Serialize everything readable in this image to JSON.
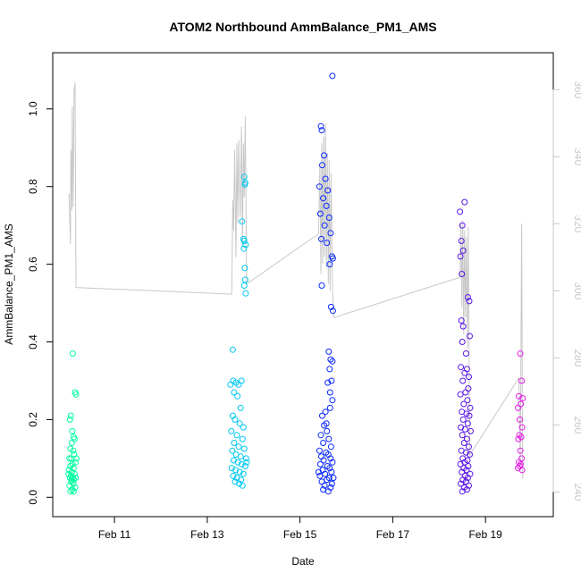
{
  "chart_data": {
    "type": "scatter",
    "title": "ATOM2 Northbound AmmBalance_PM1_AMS",
    "xlabel": "Date",
    "ylabel": "AmmBalance_PM1_AMS",
    "x_tick_labels": [
      "Feb 11",
      "Feb 13",
      "Feb 15",
      "Feb 17",
      "Feb 19"
    ],
    "x_ticks_day": [
      11,
      13,
      15,
      17,
      19
    ],
    "xlim_day": [
      9.9,
      20.25
    ],
    "ylim": [
      -0.02,
      1.11
    ],
    "y_ticks": [
      "0.0",
      "0.2",
      "0.4",
      "0.6",
      "0.8",
      "1.0"
    ],
    "y2_ticks": [
      "240",
      "260",
      "280",
      "300",
      "320",
      "340",
      "360"
    ],
    "y2lim": [
      236.1,
      367.0
    ],
    "grid": false,
    "colors": {
      "line": "#c8c8c8",
      "axis": "#000000",
      "y2axis": "#c8c8c8",
      "frame": "#000000"
    },
    "point_colors_by_time": [
      "#00ffa0",
      "#00c8f0",
      "#0a28ff",
      "#5a14e6",
      "#e61ee6"
    ],
    "series": [
      {
        "color_group": 0,
        "points": [
          [
            10.1,
            0.37
          ],
          [
            10.15,
            0.27
          ],
          [
            10.17,
            0.265
          ],
          [
            10.04,
            0.2
          ],
          [
            10.06,
            0.21
          ],
          [
            10.09,
            0.17
          ],
          [
            10.12,
            0.155
          ],
          [
            10.14,
            0.15
          ],
          [
            10.08,
            0.14
          ],
          [
            10.05,
            0.125
          ],
          [
            10.11,
            0.12
          ],
          [
            10.13,
            0.11
          ],
          [
            10.03,
            0.1
          ],
          [
            10.07,
            0.1
          ],
          [
            10.16,
            0.09
          ],
          [
            10.09,
            0.085
          ],
          [
            10.05,
            0.08
          ],
          [
            10.12,
            0.075
          ],
          [
            10.02,
            0.07
          ],
          [
            10.08,
            0.065
          ],
          [
            10.14,
            0.06
          ],
          [
            10.06,
            0.055
          ],
          [
            10.1,
            0.05
          ],
          [
            10.04,
            0.05
          ],
          [
            10.13,
            0.045
          ],
          [
            10.07,
            0.04
          ],
          [
            10.11,
            0.035
          ],
          [
            10.03,
            0.03
          ],
          [
            10.15,
            0.025
          ],
          [
            10.09,
            0.02
          ],
          [
            10.05,
            0.015
          ],
          [
            10.12,
            0.015
          ],
          [
            10.18,
            0.1
          ],
          [
            10.01,
            0.06
          ],
          [
            10.16,
            0.05
          ],
          [
            10.08,
            0.045
          ]
        ]
      },
      {
        "color_group": 1,
        "points": [
          [
            13.55,
            0.38
          ],
          [
            13.8,
            0.825
          ],
          [
            13.82,
            0.81
          ],
          [
            13.81,
            0.805
          ],
          [
            13.75,
            0.71
          ],
          [
            13.78,
            0.665
          ],
          [
            13.8,
            0.66
          ],
          [
            13.83,
            0.65
          ],
          [
            13.79,
            0.64
          ],
          [
            13.81,
            0.59
          ],
          [
            13.82,
            0.56
          ],
          [
            13.8,
            0.545
          ],
          [
            13.83,
            0.525
          ],
          [
            13.5,
            0.29
          ],
          [
            13.56,
            0.3
          ],
          [
            13.62,
            0.295
          ],
          [
            13.68,
            0.29
          ],
          [
            13.74,
            0.3
          ],
          [
            13.58,
            0.27
          ],
          [
            13.65,
            0.26
          ],
          [
            13.72,
            0.23
          ],
          [
            13.55,
            0.21
          ],
          [
            13.6,
            0.2
          ],
          [
            13.7,
            0.19
          ],
          [
            13.78,
            0.18
          ],
          [
            13.52,
            0.17
          ],
          [
            13.64,
            0.16
          ],
          [
            13.76,
            0.15
          ],
          [
            13.58,
            0.14
          ],
          [
            13.68,
            0.13
          ],
          [
            13.8,
            0.125
          ],
          [
            13.54,
            0.12
          ],
          [
            13.62,
            0.11
          ],
          [
            13.72,
            0.105
          ],
          [
            13.84,
            0.1
          ],
          [
            13.57,
            0.095
          ],
          [
            13.66,
            0.09
          ],
          [
            13.74,
            0.085
          ],
          [
            13.82,
            0.08
          ],
          [
            13.53,
            0.075
          ],
          [
            13.61,
            0.07
          ],
          [
            13.7,
            0.065
          ],
          [
            13.78,
            0.06
          ],
          [
            13.56,
            0.055
          ],
          [
            13.64,
            0.05
          ],
          [
            13.73,
            0.045
          ],
          [
            13.6,
            0.04
          ],
          [
            13.69,
            0.035
          ],
          [
            13.76,
            0.03
          ],
          [
            13.85,
            0.09
          ]
        ]
      },
      {
        "color_group": 2,
        "points": [
          [
            15.7,
            1.085
          ],
          [
            15.45,
            0.955
          ],
          [
            15.47,
            0.945
          ],
          [
            15.52,
            0.88
          ],
          [
            15.48,
            0.855
          ],
          [
            15.55,
            0.82
          ],
          [
            15.42,
            0.8
          ],
          [
            15.6,
            0.79
          ],
          [
            15.5,
            0.77
          ],
          [
            15.57,
            0.75
          ],
          [
            15.44,
            0.73
          ],
          [
            15.63,
            0.72
          ],
          [
            15.53,
            0.7
          ],
          [
            15.66,
            0.68
          ],
          [
            15.46,
            0.665
          ],
          [
            15.58,
            0.655
          ],
          [
            15.69,
            0.62
          ],
          [
            15.71,
            0.615
          ],
          [
            15.64,
            0.6
          ],
          [
            15.47,
            0.545
          ],
          [
            15.67,
            0.49
          ],
          [
            15.71,
            0.48
          ],
          [
            15.62,
            0.375
          ],
          [
            15.66,
            0.355
          ],
          [
            15.7,
            0.35
          ],
          [
            15.64,
            0.33
          ],
          [
            15.68,
            0.3
          ],
          [
            15.6,
            0.295
          ],
          [
            15.65,
            0.27
          ],
          [
            15.7,
            0.25
          ],
          [
            15.55,
            0.22
          ],
          [
            15.48,
            0.21
          ],
          [
            15.52,
            0.185
          ],
          [
            15.58,
            0.17
          ],
          [
            15.45,
            0.16
          ],
          [
            15.62,
            0.15
          ],
          [
            15.5,
            0.14
          ],
          [
            15.67,
            0.13
          ],
          [
            15.42,
            0.12
          ],
          [
            15.56,
            0.115
          ],
          [
            15.61,
            0.11
          ],
          [
            15.46,
            0.105
          ],
          [
            15.66,
            0.1
          ],
          [
            15.51,
            0.095
          ],
          [
            15.7,
            0.09
          ],
          [
            15.44,
            0.085
          ],
          [
            15.59,
            0.08
          ],
          [
            15.64,
            0.075
          ],
          [
            15.49,
            0.07
          ],
          [
            15.68,
            0.065
          ],
          [
            15.54,
            0.06
          ],
          [
            15.43,
            0.055
          ],
          [
            15.63,
            0.05
          ],
          [
            15.58,
            0.045
          ],
          [
            15.47,
            0.04
          ],
          [
            15.69,
            0.035
          ],
          [
            15.53,
            0.03
          ],
          [
            15.66,
            0.025
          ],
          [
            15.5,
            0.02
          ],
          [
            15.61,
            0.015
          ],
          [
            15.72,
            0.05
          ],
          [
            15.4,
            0.065
          ],
          [
            15.57,
            0.19
          ],
          [
            15.65,
            0.23
          ]
        ]
      },
      {
        "color_group": 3,
        "points": [
          [
            18.55,
            0.76
          ],
          [
            18.45,
            0.735
          ],
          [
            18.5,
            0.7
          ],
          [
            18.48,
            0.66
          ],
          [
            18.52,
            0.635
          ],
          [
            18.46,
            0.62
          ],
          [
            18.49,
            0.575
          ],
          [
            18.62,
            0.515
          ],
          [
            18.65,
            0.505
          ],
          [
            18.48,
            0.455
          ],
          [
            18.52,
            0.44
          ],
          [
            18.66,
            0.415
          ],
          [
            18.5,
            0.4
          ],
          [
            18.58,
            0.37
          ],
          [
            18.47,
            0.335
          ],
          [
            18.6,
            0.33
          ],
          [
            18.55,
            0.32
          ],
          [
            18.64,
            0.31
          ],
          [
            18.51,
            0.3
          ],
          [
            18.63,
            0.28
          ],
          [
            18.57,
            0.27
          ],
          [
            18.46,
            0.265
          ],
          [
            18.61,
            0.25
          ],
          [
            18.53,
            0.24
          ],
          [
            18.67,
            0.23
          ],
          [
            18.49,
            0.22
          ],
          [
            18.59,
            0.215
          ],
          [
            18.65,
            0.21
          ],
          [
            18.52,
            0.2
          ],
          [
            18.62,
            0.19
          ],
          [
            18.47,
            0.18
          ],
          [
            18.56,
            0.175
          ],
          [
            18.68,
            0.17
          ],
          [
            18.5,
            0.16
          ],
          [
            18.6,
            0.15
          ],
          [
            18.54,
            0.14
          ],
          [
            18.64,
            0.13
          ],
          [
            18.48,
            0.12
          ],
          [
            18.58,
            0.115
          ],
          [
            18.66,
            0.11
          ],
          [
            18.51,
            0.1
          ],
          [
            18.61,
            0.095
          ],
          [
            18.55,
            0.09
          ],
          [
            18.46,
            0.085
          ],
          [
            18.63,
            0.08
          ],
          [
            18.53,
            0.075
          ],
          [
            18.59,
            0.07
          ],
          [
            18.49,
            0.065
          ],
          [
            18.67,
            0.06
          ],
          [
            18.56,
            0.055
          ],
          [
            18.62,
            0.05
          ],
          [
            18.51,
            0.045
          ],
          [
            18.58,
            0.04
          ],
          [
            18.47,
            0.035
          ],
          [
            18.64,
            0.03
          ],
          [
            18.54,
            0.025
          ],
          [
            18.6,
            0.02
          ],
          [
            18.5,
            0.015
          ]
        ]
      },
      {
        "color_group": 4,
        "points": [
          [
            19.75,
            0.37
          ],
          [
            19.78,
            0.3
          ],
          [
            19.72,
            0.26
          ],
          [
            19.8,
            0.255
          ],
          [
            19.76,
            0.24
          ],
          [
            19.7,
            0.23
          ],
          [
            19.74,
            0.2
          ],
          [
            19.79,
            0.18
          ],
          [
            19.73,
            0.16
          ],
          [
            19.77,
            0.155
          ],
          [
            19.71,
            0.15
          ],
          [
            19.75,
            0.12
          ],
          [
            19.78,
            0.1
          ],
          [
            19.72,
            0.09
          ],
          [
            19.76,
            0.085
          ],
          [
            19.74,
            0.08
          ],
          [
            19.7,
            0.075
          ],
          [
            19.79,
            0.07
          ]
        ]
      }
    ],
    "line_y2": [
      [
        10.02,
        329
      ],
      [
        10.05,
        314
      ],
      [
        10.06,
        342
      ],
      [
        10.08,
        324
      ],
      [
        10.09,
        355
      ],
      [
        10.11,
        325
      ],
      [
        10.13,
        360
      ],
      [
        10.15,
        362
      ],
      [
        10.17,
        301
      ],
      [
        13.53,
        299
      ],
      [
        13.55,
        327
      ],
      [
        13.57,
        318
      ],
      [
        13.59,
        342
      ],
      [
        13.62,
        310
      ],
      [
        13.64,
        344
      ],
      [
        13.66,
        320
      ],
      [
        13.68,
        345
      ],
      [
        13.71,
        322
      ],
      [
        13.74,
        349
      ],
      [
        13.76,
        313
      ],
      [
        13.78,
        344
      ],
      [
        13.8,
        328
      ],
      [
        13.82,
        352
      ],
      [
        13.85,
        302
      ],
      [
        15.4,
        317
      ],
      [
        15.43,
        338
      ],
      [
        15.45,
        305
      ],
      [
        15.47,
        344
      ],
      [
        15.49,
        308
      ],
      [
        15.51,
        346
      ],
      [
        15.53,
        310
      ],
      [
        15.55,
        350
      ],
      [
        15.57,
        307
      ],
      [
        15.59,
        341
      ],
      [
        15.61,
        302
      ],
      [
        15.63,
        339
      ],
      [
        15.65,
        300
      ],
      [
        15.67,
        335
      ],
      [
        15.7,
        301
      ],
      [
        15.73,
        292
      ],
      [
        18.45,
        304
      ],
      [
        18.47,
        320
      ],
      [
        18.49,
        295
      ],
      [
        18.51,
        321
      ],
      [
        18.53,
        287
      ],
      [
        18.55,
        318
      ],
      [
        18.57,
        292
      ],
      [
        18.59,
        316
      ],
      [
        18.61,
        283
      ],
      [
        18.63,
        319
      ],
      [
        18.66,
        251
      ],
      [
        19.72,
        274
      ],
      [
        19.75,
        247
      ],
      [
        19.78,
        320
      ],
      [
        19.8,
        244
      ]
    ]
  }
}
